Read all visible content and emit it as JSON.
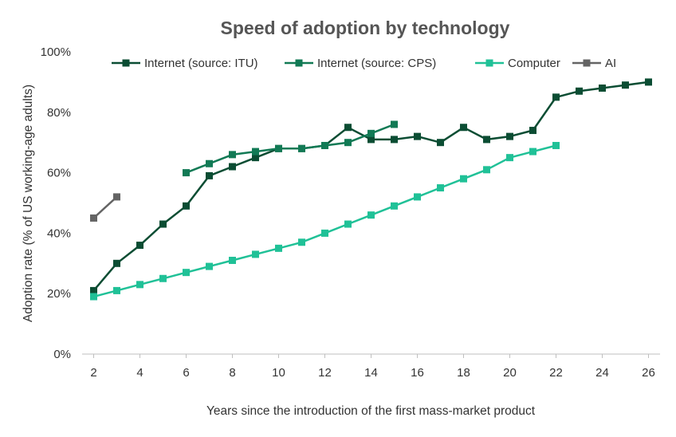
{
  "chart_data": {
    "type": "line",
    "title": "Speed of adoption by technology",
    "xlabel": "Years since the introduction of the first mass-market product",
    "ylabel": "Adoption rate (% of US working-age adults)",
    "xlim": [
      1.5,
      26.5
    ],
    "ylim": [
      0,
      100
    ],
    "x_ticks": [
      "2",
      "4",
      "6",
      "8",
      "10",
      "12",
      "14",
      "16",
      "18",
      "20",
      "22",
      "24",
      "26"
    ],
    "y_ticks": [
      "0%",
      "20%",
      "40%",
      "60%",
      "80%",
      "100%"
    ],
    "grid": false,
    "legend_position": "top",
    "series": [
      {
        "name": "Internet (source: ITU)",
        "color": "#0b4d33",
        "x": [
          2,
          3,
          4,
          5,
          6,
          7,
          8,
          9,
          10,
          11,
          12,
          13,
          14,
          15,
          16,
          17,
          18,
          19,
          20,
          21,
          22,
          23,
          24,
          25,
          26
        ],
        "y": [
          21,
          30,
          36,
          43,
          49,
          59,
          62,
          65,
          68,
          68,
          69,
          75,
          71,
          71,
          72,
          70,
          75,
          71,
          72,
          74,
          85,
          87,
          88,
          89,
          90
        ]
      },
      {
        "name": "Internet (source: CPS)",
        "color": "#127a55",
        "x": [
          6,
          7,
          8,
          9,
          10,
          11,
          12,
          13,
          14,
          15
        ],
        "y": [
          60,
          63,
          66,
          67,
          68,
          68,
          69,
          70,
          73,
          76
        ]
      },
      {
        "name": "Computer",
        "color": "#20c197",
        "x": [
          2,
          3,
          4,
          5,
          6,
          7,
          8,
          9,
          10,
          11,
          12,
          13,
          14,
          15,
          16,
          17,
          18,
          19,
          20,
          21,
          22
        ],
        "y": [
          19,
          21,
          23,
          25,
          27,
          29,
          31,
          33,
          35,
          37,
          40,
          43,
          46,
          49,
          52,
          55,
          58,
          61,
          65,
          67,
          69
        ]
      },
      {
        "name": "AI",
        "color": "#646464",
        "x": [
          2,
          3
        ],
        "y": [
          45,
          52
        ]
      }
    ]
  }
}
